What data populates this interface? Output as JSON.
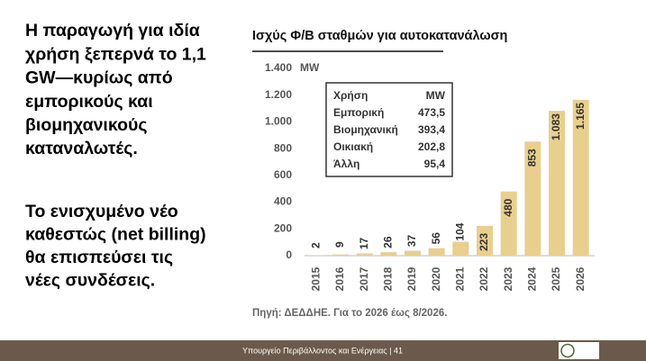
{
  "slide": {
    "paragraphs": [
      [
        "Η παραγωγή για ιδία",
        "χρήση ξεπερνά το 1,1",
        "GW—κυρίως από",
        "εμπορικούς και",
        "βιομηχανικούς",
        "καταναλωτές."
      ],
      [
        "Το ενισχυμένο νέο",
        "καθεστώς (net billing)",
        "θα επισπεύσει τις",
        "νέες συνδέσεις."
      ]
    ],
    "footer": "Υπουργείο Περιβάλλοντος και Ενέργειας | 41"
  },
  "chart_data": {
    "type": "bar",
    "title": "Ισχύς Φ/Β σταθμών για αυτοκατανάλωση",
    "y_unit": "MW",
    "categories": [
      "2015",
      "2016",
      "2017",
      "2018",
      "2019",
      "2020",
      "2021",
      "2022",
      "2023",
      "2024",
      "2025",
      "2026"
    ],
    "values": [
      2,
      9,
      17,
      26,
      37,
      56,
      104,
      223,
      480,
      853,
      1083,
      1165
    ],
    "value_labels": [
      "2",
      "9",
      "17",
      "26",
      "37",
      "56",
      "104",
      "223",
      "480",
      "853",
      "1.083",
      "1.165"
    ],
    "color": "#e9cf8e",
    "ylim": [
      0,
      1400
    ],
    "yticks": [
      0,
      200,
      400,
      600,
      800,
      {
        "value": 1000,
        "label": "1.000"
      },
      {
        "value": 1200,
        "label": "1.200"
      },
      {
        "value": 1400,
        "label": "1.400"
      }
    ],
    "grid": false,
    "table": {
      "header": [
        "Χρήση",
        "MW"
      ],
      "rows": [
        [
          "Εμπορική",
          "473,5"
        ],
        [
          "Βιομηχανική",
          "393,4"
        ],
        [
          "Οικιακή",
          "202,8"
        ],
        [
          "Άλλη",
          "95,4"
        ]
      ]
    },
    "source": "Πηγή: ΔΕΔΔΗΕ. Για το 2026 έως 8/2026."
  }
}
